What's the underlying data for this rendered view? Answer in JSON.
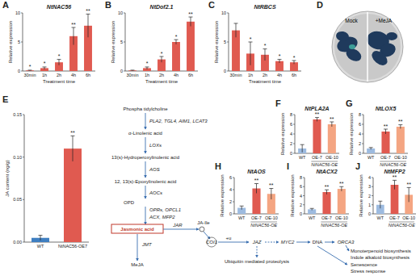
{
  "chart_data": [
    {
      "type": "bar",
      "panel": "A",
      "title": "NtNAC56",
      "ylabel": "Relative expression",
      "xlabel": "Treatment time",
      "categories": [
        "30min",
        "1h",
        "2h",
        "4h",
        "6h"
      ],
      "values": [
        0.1,
        0.5,
        1.5,
        6,
        7.8
      ],
      "errors": [
        0.05,
        0.2,
        0.5,
        1.5,
        2
      ],
      "significance": [
        "*",
        "*",
        "*",
        "**",
        "**"
      ],
      "ylim": [
        0,
        10
      ],
      "yticks": [
        0,
        5,
        10
      ],
      "color": "#e05a50"
    },
    {
      "type": "bar",
      "panel": "B",
      "title": "NtDof2.1",
      "ylabel": "Relative expression",
      "xlabel": "Treatment time",
      "categories": [
        "30min",
        "1h",
        "2h",
        "4h",
        "6h"
      ],
      "values": [
        0.1,
        0.5,
        2,
        5,
        8.5
      ],
      "errors": [
        0.05,
        0.2,
        0.5,
        0.4,
        0.8
      ],
      "significance": [
        null,
        "*",
        "*",
        "*",
        "**"
      ],
      "ylim": [
        0,
        10
      ],
      "yticks": [
        0,
        5,
        10
      ],
      "color": "#e05a50"
    },
    {
      "type": "bar",
      "panel": "C",
      "title": "NtRBCS",
      "ylabel": "Relative expression",
      "xlabel": "Treatment time",
      "categories": [
        "30min",
        "1h",
        "2h",
        "4h",
        "6h"
      ],
      "values": [
        7,
        3,
        2.8,
        1.7,
        1.5
      ],
      "errors": [
        1.2,
        2,
        1,
        0.3,
        0.3
      ],
      "significance": [
        null,
        "*",
        "*",
        "*",
        "*"
      ],
      "ylim": [
        0,
        10
      ],
      "yticks": [
        0,
        5,
        10
      ],
      "color": "#e05a50"
    },
    {
      "type": "bar",
      "panel": "E",
      "ylabel": "JA content (ng/g)",
      "categories": [
        "WT",
        "NtNAC56-OE7"
      ],
      "values": [
        0.005,
        0.11
      ],
      "errors": [
        0.003,
        0.015
      ],
      "significance": [
        null,
        "**"
      ],
      "ylim": [
        0,
        0.15
      ],
      "yticks": [
        {
          "value": 0,
          "label": "0.00"
        },
        {
          "value": 0.05,
          "label": "0.05"
        },
        {
          "value": 0.1,
          "label": "0.10"
        },
        {
          "value": 0.15,
          "label": "0.15"
        }
      ],
      "colors": [
        "#3f7fc1",
        "#e05a50"
      ]
    },
    {
      "type": "bar",
      "panel": "F",
      "title": "NtPLA2A",
      "ylabel": "Relative expression",
      "categories": [
        "WT",
        "OE-7",
        "OE-10"
      ],
      "group_label": "NtNAC56-OE",
      "values": [
        1,
        7,
        6
      ],
      "errors": [
        0.8,
        0.4,
        0.5
      ],
      "significance": [
        null,
        "**",
        "**"
      ],
      "ylim": [
        0,
        8
      ],
      "yticks": [
        0,
        2,
        4,
        6,
        8
      ],
      "colors": [
        "#9dbbe0",
        "#e05a50",
        "#f4a582"
      ]
    },
    {
      "type": "bar",
      "panel": "G",
      "title": "NtLOX5",
      "ylabel": "Relative expression",
      "categories": [
        "WT",
        "OE-7",
        "OE-10"
      ],
      "group_label": "NtNAC56-OE",
      "values": [
        1,
        4.5,
        5.5
      ],
      "errors": [
        0.2,
        0.5,
        0.4
      ],
      "significance": [
        null,
        "**",
        "**"
      ],
      "ylim": [
        0,
        8
      ],
      "yticks": [
        0,
        2,
        4,
        6,
        8
      ],
      "colors": [
        "#9dbbe0",
        "#e05a50",
        "#f4a582"
      ]
    },
    {
      "type": "bar",
      "panel": "H",
      "title": "NtAOS",
      "ylabel": "Relative expression",
      "categories": [
        "WT",
        "OE-7",
        "OE-10"
      ],
      "group_label": "NtNAC56-OE",
      "values": [
        1,
        4.2,
        3.3
      ],
      "errors": [
        0.3,
        0.8,
        0.9
      ],
      "significance": [
        null,
        "**",
        "**"
      ],
      "ylim": [
        0,
        6
      ],
      "yticks": [
        0,
        2,
        4,
        6
      ],
      "colors": [
        "#9dbbe0",
        "#e05a50",
        "#f4a582"
      ]
    },
    {
      "type": "bar",
      "panel": "I",
      "title": "NtACX2",
      "ylabel": "Relative expression",
      "categories": [
        "WT",
        "OE-7",
        "OE-10"
      ],
      "group_label": "NtNAC56-OE",
      "values": [
        1,
        4.8,
        5.5
      ],
      "errors": [
        0.2,
        0.5,
        0.5
      ],
      "significance": [
        null,
        "**",
        "**"
      ],
      "ylim": [
        0,
        8
      ],
      "yticks": [
        0,
        2,
        4,
        6,
        8
      ],
      "colors": [
        "#9dbbe0",
        "#e05a50",
        "#f4a582"
      ]
    },
    {
      "type": "bar",
      "panel": "J",
      "title": "NtMFP2",
      "ylabel": "Relative expression",
      "categories": [
        "WT",
        "OE-7",
        "OE-10"
      ],
      "group_label": "NtNAC56-OE",
      "values": [
        1,
        3.2,
        2.1
      ],
      "errors": [
        0.4,
        0.5,
        0.8
      ],
      "significance": [
        null,
        "**",
        "**"
      ],
      "ylim": [
        0,
        4
      ],
      "yticks": [
        0,
        1,
        2,
        3,
        4
      ],
      "colors": [
        "#9dbbe0",
        "#e05a50",
        "#f4a582"
      ]
    }
  ],
  "photo": {
    "panel": "D",
    "labels": [
      "Mock",
      "+MeJA"
    ]
  },
  "pathway": {
    "nodes": [
      {
        "label": "Phospha tidylcholine"
      },
      {
        "label": "PLA2, TGL4, AIM1, LCAT3"
      },
      {
        "label": "α-Linolenic acid"
      },
      {
        "label": "LOXs"
      },
      {
        "label": "13(s)-Hydroperoxylinolenic acid"
      },
      {
        "label": "AOS"
      },
      {
        "label": "12, 13(s)-Epoxylinolenic acid"
      },
      {
        "label": "AOCs"
      },
      {
        "label": "OPD"
      },
      {
        "label": "OPRs, OPCL1"
      },
      {
        "label": "ACX, MFP2"
      },
      {
        "label": "Jasmonic acid"
      },
      {
        "label": "JAR"
      },
      {
        "label": "JA-Ile"
      },
      {
        "label": "JMT"
      },
      {
        "label": "MeJA"
      },
      {
        "label": "COI1"
      },
      {
        "label": "+u"
      },
      {
        "label": "JAZ"
      },
      {
        "label": "MYC2"
      },
      {
        "label": "DNA"
      },
      {
        "label": "ORCA3"
      },
      {
        "label": "Monoterpenoid biosynthesis"
      },
      {
        "label": "Indole alkaloid biosynthesis"
      },
      {
        "label": "Senescence"
      },
      {
        "label": "Stress response"
      },
      {
        "label": "Ubiquitin mediated proteolysis"
      }
    ]
  }
}
